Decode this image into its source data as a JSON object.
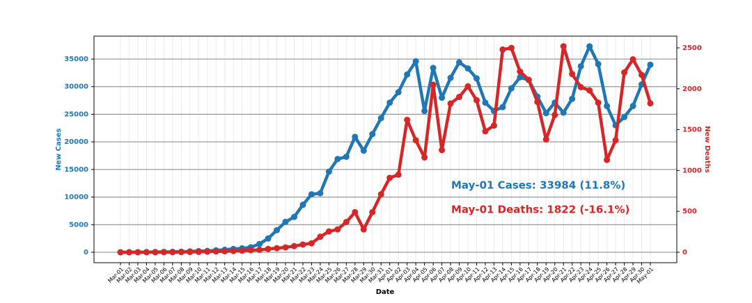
{
  "chart_data": {
    "type": "line",
    "xlabel": "Date",
    "ylabel": "New Cases",
    "y2label": "New Deaths",
    "categories": [
      "Mar-01",
      "Mar-02",
      "Mar-03",
      "Mar-04",
      "Mar-05",
      "Mar-06",
      "Mar-07",
      "Mar-08",
      "Mar-09",
      "Mar-10",
      "Mar-11",
      "Mar-12",
      "Mar-13",
      "Mar-14",
      "Mar-15",
      "Mar-16",
      "Mar-17",
      "Mar-18",
      "Mar-19",
      "Mar-20",
      "Mar-21",
      "Mar-22",
      "Mar-23",
      "Mar-24",
      "Mar-25",
      "Mar-26",
      "Mar-27",
      "Mar-28",
      "Mar-29",
      "Mar-30",
      "Mar-31",
      "Apr-01",
      "Apr-02",
      "Apr-03",
      "Apr-04",
      "Apr-05",
      "Apr-06",
      "Apr-07",
      "Apr-08",
      "Apr-09",
      "Apr-10",
      "Apr-11",
      "Apr-12",
      "Apr-13",
      "Apr-14",
      "Apr-15",
      "Apr-16",
      "Apr-17",
      "Apr-18",
      "Apr-19",
      "Apr-20",
      "Apr-21",
      "Apr-22",
      "Apr-23",
      "Apr-24",
      "Apr-25",
      "Apr-26",
      "Apr-27",
      "Apr-28",
      "Apr-29",
      "Apr-30",
      "May-01"
    ],
    "series": [
      {
        "name": "New Cases",
        "color": "#1f77b4",
        "axis": "y",
        "values": [
          5,
          10,
          20,
          30,
          40,
          60,
          80,
          100,
          150,
          200,
          250,
          350,
          450,
          600,
          700,
          900,
          1500,
          2500,
          4000,
          5500,
          6400,
          8600,
          10500,
          10700,
          14600,
          16900,
          17300,
          20900,
          18400,
          21400,
          24300,
          27100,
          29000,
          32200,
          34600,
          25600,
          33400,
          28000,
          31600,
          34400,
          33300,
          31500,
          27100,
          25600,
          26300,
          29700,
          31700,
          31200,
          28200,
          25200,
          27100,
          25300,
          27800,
          33700,
          37300,
          34100,
          26500,
          23000,
          24500,
          26500,
          30400,
          33984
        ]
      },
      {
        "name": "New Deaths",
        "color": "#d62728",
        "axis": "y2",
        "values": [
          0,
          0,
          0,
          1,
          1,
          2,
          2,
          3,
          4,
          5,
          7,
          10,
          12,
          15,
          20,
          25,
          30,
          40,
          50,
          60,
          75,
          95,
          110,
          190,
          255,
          280,
          370,
          490,
          280,
          490,
          710,
          910,
          950,
          1620,
          1370,
          1160,
          2050,
          1250,
          1820,
          1900,
          2030,
          1860,
          1480,
          1550,
          2480,
          2500,
          2210,
          2110,
          1840,
          1380,
          1680,
          2520,
          2180,
          2020,
          1980,
          1830,
          1130,
          1370,
          2200,
          2360,
          2170,
          1822
        ]
      }
    ],
    "ylim": [
      -1890,
      39155
    ],
    "yticks": [
      0,
      5000,
      10000,
      15000,
      20000,
      25000,
      30000,
      35000
    ],
    "y2lim": [
      -127.5,
      2644
    ],
    "y2ticks": [
      0,
      500,
      1000,
      1500,
      2000,
      2500
    ],
    "grid": true,
    "annotations": [
      {
        "text": "May-01 Cases: 33984 (11.8%)",
        "color": "#1f77b4"
      },
      {
        "text": "May-01 Deaths: 1822 (-16.1%)",
        "color": "#d62728"
      }
    ]
  }
}
